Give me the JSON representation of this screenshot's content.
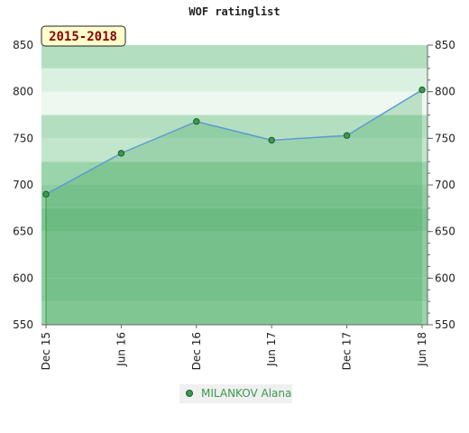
{
  "chart_data": {
    "type": "area",
    "title": "WOF ratinglist",
    "period_label": "2015-2018",
    "xlabel": "",
    "ylabel": "",
    "categories": [
      "Dec 15",
      "Jun 16",
      "Dec 16",
      "Jun 17",
      "Dec 17",
      "Jun 18"
    ],
    "series": [
      {
        "name": "MILANKOV Alana",
        "values": [
          690,
          734,
          768,
          748,
          753,
          802
        ]
      }
    ],
    "ylim": [
      550,
      850
    ],
    "yticks": [
      550,
      600,
      650,
      700,
      750,
      800,
      850
    ],
    "grid": true,
    "legend_position": "bottom",
    "colors": {
      "line": "#5b9bd5",
      "marker": "#3a9a4e",
      "legend_text": "#3a9a4e",
      "period_badge_bg": "#ffffcc",
      "period_badge_text": "#8b0000"
    }
  }
}
